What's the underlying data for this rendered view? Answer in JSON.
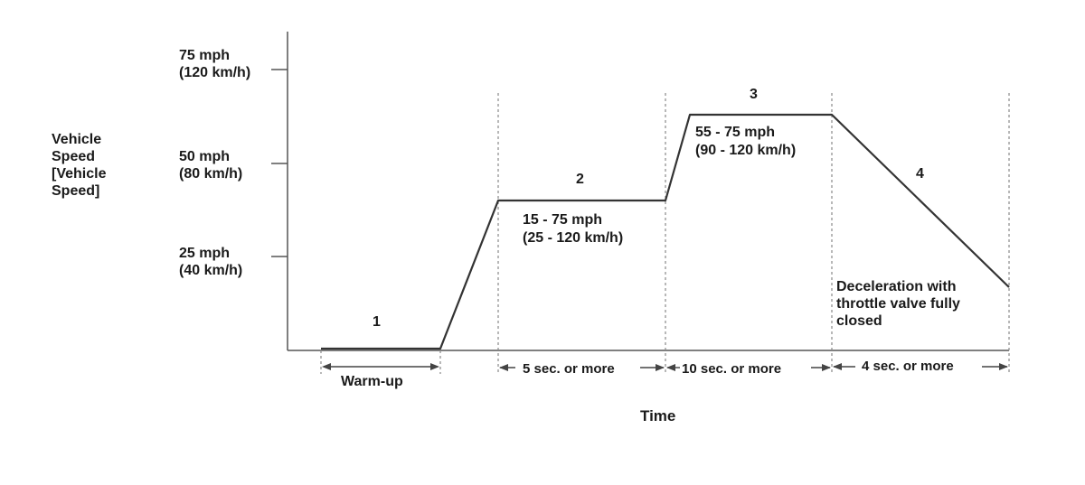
{
  "y_axis": {
    "label_lines": [
      "Vehicle",
      "Speed",
      "[Vehicle",
      "Speed]"
    ],
    "ticks": [
      {
        "line1": "75 mph",
        "line2": "(120 km/h)"
      },
      {
        "line1": "50 mph",
        "line2": "(80 km/h)"
      },
      {
        "line1": "25 mph",
        "line2": "(40 km/h)"
      }
    ]
  },
  "x_axis": {
    "label": "Time"
  },
  "phases": [
    {
      "number": "1",
      "duration": "Warm-up"
    },
    {
      "number": "2",
      "speed_line1": "15 - 75 mph",
      "speed_line2": "(25 - 120 km/h)",
      "duration": "5 sec. or more"
    },
    {
      "number": "3",
      "speed_line1": "55 - 75 mph",
      "speed_line2": "(90 - 120 km/h)",
      "duration": "10 sec. or more"
    },
    {
      "number": "4",
      "note_lines": [
        "Deceleration with",
        "throttle valve fully",
        "closed"
      ],
      "duration": "4 sec. or more"
    }
  ]
}
